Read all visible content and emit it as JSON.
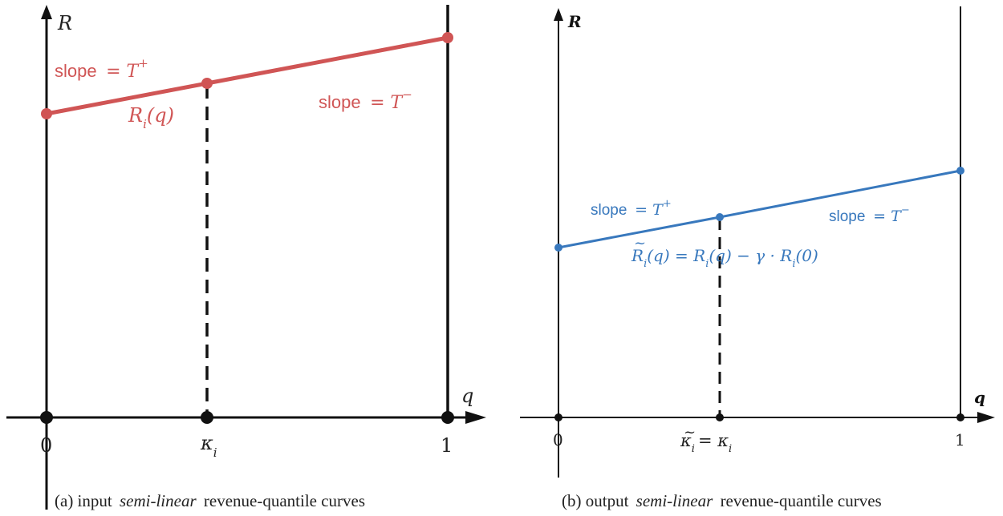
{
  "colors": {
    "axis": "#111111",
    "panel_a_curve": "#d05555",
    "panel_b_curve": "#3878bd"
  },
  "panel_a": {
    "y_axis_label": "R",
    "x_axis_label": "q",
    "tick_zero": "0",
    "tick_kappa": "κ",
    "tick_kappa_sub": "i",
    "tick_one": "1",
    "slope_left_text": "slope",
    "slope_left_eq": "= T",
    "slope_left_sup": "+",
    "slope_right_text": "slope",
    "slope_right_eq": "= T",
    "slope_right_sup": "−",
    "curve_label_main": "R",
    "curve_label_sub": "i",
    "curve_label_arg": "(q)",
    "caption_prefix": "(a)  input",
    "caption_italic": "semi-linear",
    "caption_suffix": "revenue-quantile curves"
  },
  "panel_b": {
    "y_axis_label": "R",
    "x_axis_label": "q",
    "tick_zero": "0",
    "tick_kappa_tilde": "~",
    "tick_kappa": "κ",
    "tick_kappa_sub": "i",
    "tick_kappa_eq": "= κ",
    "tick_kappa_eq_sub": "i",
    "tick_one": "1",
    "slope_left_text": "slope",
    "slope_left_eq": "= T",
    "slope_left_sup": "+",
    "slope_right_text": "slope",
    "slope_right_eq": "= T",
    "slope_right_sup": "−",
    "curve_label_tilde": "~",
    "curve_label_main": "R",
    "curve_label_sub": "i",
    "curve_label_arg": "(q) = R",
    "curve_label_sub2": "i",
    "curve_label_arg2": "(q) − γ · R",
    "curve_label_sub3": "i",
    "curve_label_arg3": "(0)",
    "caption_prefix": "(b)  output",
    "caption_italic": "semi-linear",
    "caption_suffix": "revenue-quantile curves"
  }
}
